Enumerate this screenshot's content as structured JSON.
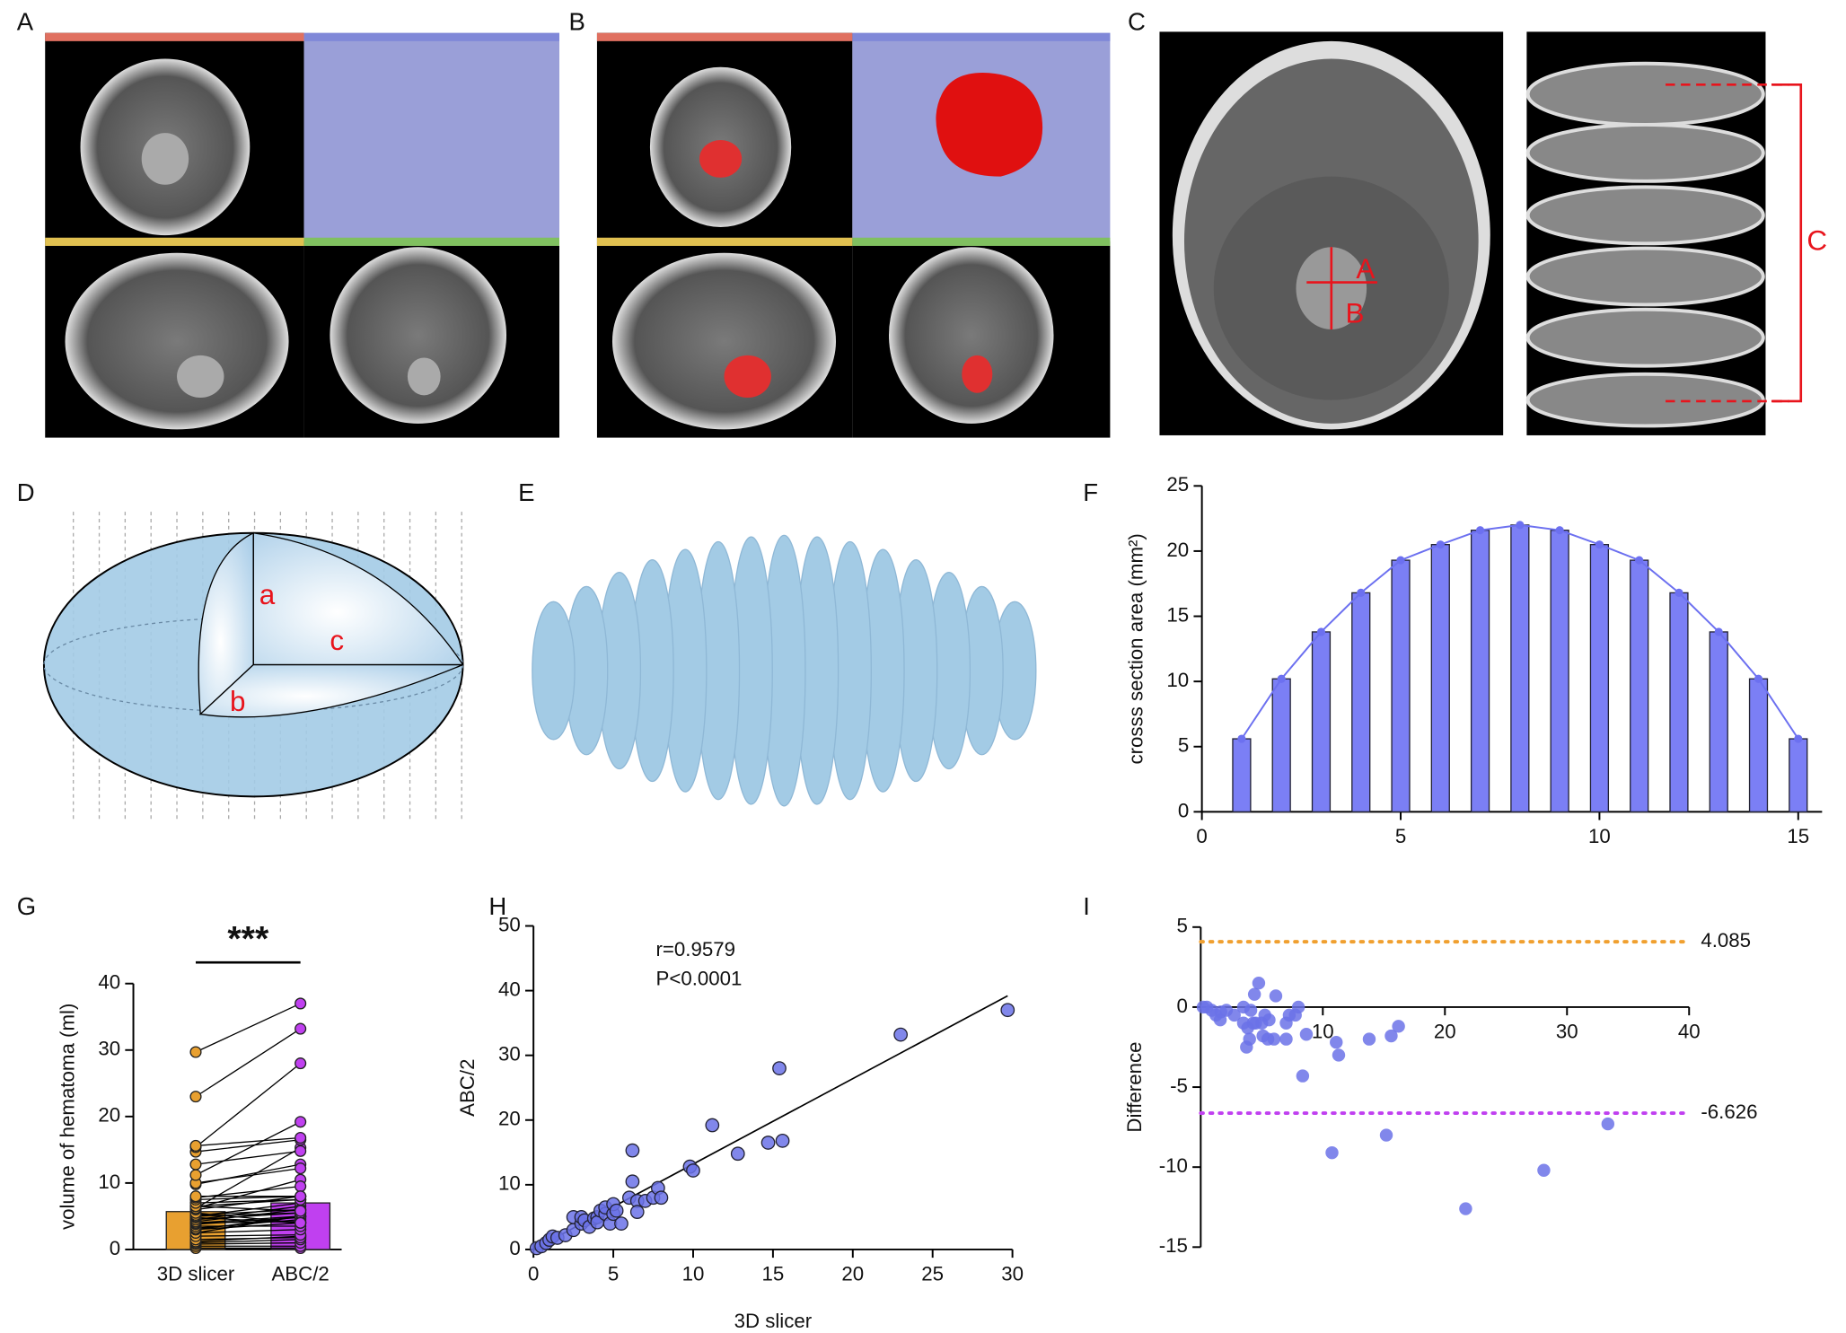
{
  "figure": {
    "panel_labels": [
      "A",
      "B",
      "C",
      "D",
      "E",
      "F",
      "G",
      "H",
      "I"
    ],
    "diagram_labels": {
      "ellipsoid": [
        "a",
        "b",
        "c"
      ],
      "ct_measure": [
        "A",
        "B",
        "C"
      ]
    }
  },
  "chart_data": [
    {
      "type": "bar_line",
      "ylabel": "crosss section area (mm²)",
      "x": [
        1,
        2,
        3,
        4,
        5,
        6,
        7,
        8,
        9,
        10,
        11,
        12,
        13,
        14,
        15
      ],
      "values": [
        5.6,
        10.2,
        13.8,
        16.8,
        19.3,
        20.5,
        21.6,
        22.0,
        21.6,
        20.5,
        19.3,
        16.8,
        13.8,
        10.2,
        5.6
      ],
      "color": "#7b7ff5",
      "line_color": "#6c70f0",
      "xlim": [
        0,
        15.6
      ],
      "xticks": [
        0,
        5,
        10,
        15
      ],
      "ylim": [
        0,
        25
      ],
      "yticks": [
        0,
        5,
        10,
        15,
        20,
        25
      ]
    },
    {
      "type": "paired",
      "ylabel": "volume of hematoma (ml)",
      "annotation": "***",
      "categories": [
        "3D slicer",
        "ABC/2"
      ],
      "bar_values": [
        5.7,
        7.0
      ],
      "colors": [
        "#e8a030",
        "#c040f0"
      ],
      "groups": [
        {
          "values": [
            0.2,
            0.5,
            0.8,
            1,
            1.2,
            1.5,
            2,
            2.5,
            2.5,
            3,
            3,
            3.2,
            3.5,
            3.8,
            4,
            4,
            4.2,
            4.5,
            4.5,
            4.8,
            5,
            5,
            5.2,
            5.5,
            6,
            6.2,
            6.2,
            6.5,
            6.5,
            7,
            7.5,
            7.8,
            8,
            9.8,
            10,
            11.2,
            12.8,
            14.7,
            15.4,
            15.6,
            23,
            29.7
          ]
        },
        {
          "values": [
            0.2,
            0.5,
            1,
            1.5,
            2,
            1.8,
            2.2,
            3,
            5,
            4,
            5,
            4.5,
            3.5,
            4.8,
            5,
            4.2,
            6,
            5.5,
            6.5,
            4,
            5.5,
            7,
            6,
            4,
            8,
            15.3,
            10.5,
            7.5,
            5.8,
            7.5,
            8,
            9.5,
            8,
            12.8,
            12.2,
            19.2,
            14.8,
            16.5,
            28,
            16.8,
            33.2,
            37
          ]
        }
      ],
      "ylim": [
        0,
        40
      ],
      "yticks": [
        0,
        10,
        20,
        30,
        40
      ]
    },
    {
      "type": "scatter",
      "xlabel": "3D slicer",
      "ylabel": "ABC/2",
      "annotations": [
        "r=0.9579",
        "P<0.0001"
      ],
      "color": "#6b72e8",
      "x": [
        0.2,
        0.5,
        0.8,
        1,
        1.2,
        1.5,
        2,
        2.5,
        2.5,
        3,
        3,
        3.2,
        3.5,
        3.8,
        4,
        4,
        4.2,
        4.5,
        4.5,
        4.8,
        5,
        5,
        5.2,
        5.5,
        6,
        6.2,
        6.2,
        6.5,
        6.5,
        7,
        7.5,
        7.8,
        8,
        9.8,
        10,
        11.2,
        12.8,
        14.7,
        15.4,
        15.6,
        23,
        29.7
      ],
      "values": [
        0.2,
        0.5,
        1,
        1.5,
        2,
        1.8,
        2.2,
        3,
        5,
        4,
        5,
        4.5,
        3.5,
        4.8,
        5,
        4.2,
        6,
        5.5,
        6.5,
        4,
        5.5,
        7,
        6,
        4,
        8,
        15.3,
        10.5,
        7.5,
        5.8,
        7.5,
        8,
        9.5,
        8,
        12.8,
        12.2,
        19.2,
        14.8,
        16.5,
        28,
        16.8,
        33.2,
        37
      ],
      "fit": {
        "x": [
          0,
          29.7
        ],
        "y": [
          0,
          39.2
        ]
      },
      "xlim": [
        0,
        30
      ],
      "xticks": [
        0,
        5,
        10,
        15,
        20,
        25,
        30
      ],
      "ylim": [
        0,
        50
      ],
      "yticks": [
        0,
        10,
        20,
        30,
        40,
        50
      ]
    },
    {
      "type": "bland_altman",
      "ylabel": "Difference",
      "color": "#6b72e8",
      "x": [
        0.2,
        0.5,
        0.9,
        1.25,
        1.6,
        1.65,
        2.1,
        2.75,
        3.75,
        3.5,
        4,
        3.85,
        3.5,
        4.3,
        4.5,
        4.1,
        5.1,
        5,
        5.5,
        4.4,
        5.25,
        6,
        5.6,
        4.75,
        7,
        10.75,
        8.35,
        7,
        6.15,
        7.25,
        7.75,
        8.65,
        8,
        11.3,
        11.1,
        15.2,
        13.8,
        15.6,
        21.7,
        16.2,
        28.1,
        33.35
      ],
      "values": [
        0,
        0,
        -0.2,
        -0.5,
        -0.8,
        -0.3,
        -0.2,
        -0.5,
        -2.5,
        -1,
        -2,
        -1.3,
        0,
        -1,
        -1,
        -0.2,
        -1.8,
        -1,
        -2,
        0.8,
        -0.5,
        -2,
        -0.8,
        1.5,
        -2,
        -9.1,
        -4.3,
        -1,
        0.7,
        -0.5,
        -0.5,
        -1.7,
        0,
        -3,
        -2.2,
        -8,
        -2,
        -1.8,
        -12.6,
        -1.2,
        -10.2,
        -7.3
      ],
      "hlines": [
        {
          "value": 4.085,
          "color": "#f0a030"
        },
        {
          "value": -6.626,
          "color": "#c040f0"
        }
      ],
      "xlim": [
        0,
        40
      ],
      "xticks": [
        10,
        20,
        30,
        40
      ],
      "ylim": [
        -15,
        5
      ],
      "yticks": [
        -15,
        -10,
        -5,
        0,
        5
      ]
    }
  ]
}
